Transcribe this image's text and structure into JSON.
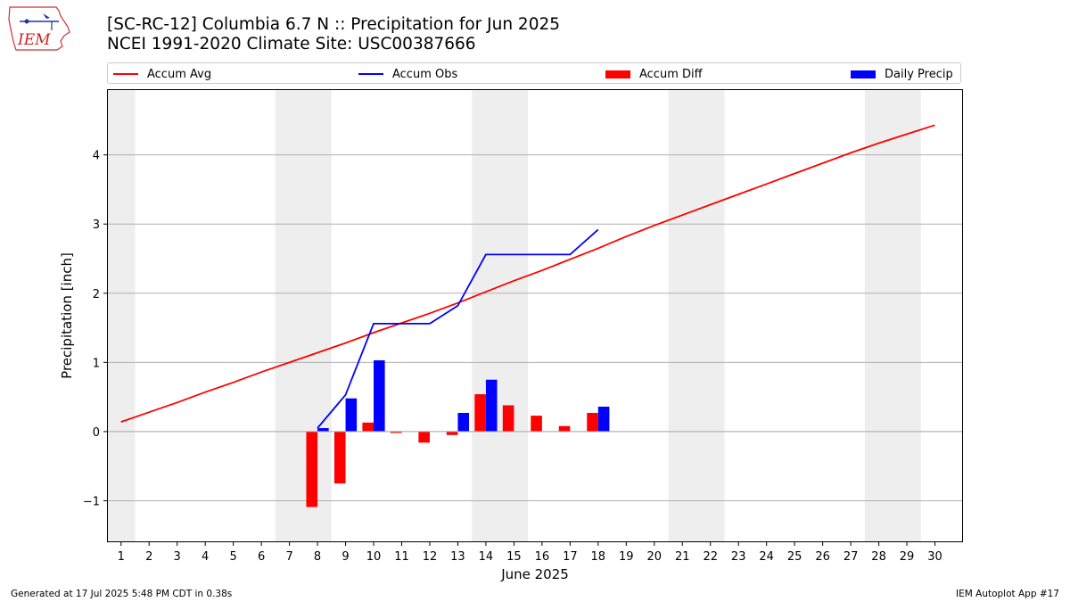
{
  "header": {
    "title_line1": "[SC-RC-12] Columbia 6.7 N :: Precipitation for Jun 2025",
    "title_line2": "NCEI 1991-2020 Climate Site: USC00387666",
    "logo_text": "IEM"
  },
  "legend": {
    "items": [
      {
        "label": "Accum Avg",
        "kind": "line",
        "color": "#ff0000"
      },
      {
        "label": "Accum Obs",
        "kind": "line",
        "color": "#0000ff"
      },
      {
        "label": "Accum Diff",
        "kind": "bar",
        "color": "#ff0000"
      },
      {
        "label": "Daily Precip",
        "kind": "bar",
        "color": "#0000ff"
      }
    ]
  },
  "footer": {
    "generated": "Generated at 17 Jul 2025 5:48 PM CDT in 0.38s",
    "app": "IEM Autoplot App #17"
  },
  "chart_data": {
    "type": "bar",
    "xlabel": "June 2025",
    "ylabel": "Precipitation [inch]",
    "xlim": [
      0.5,
      31
    ],
    "ylim": [
      -1.6,
      4.95
    ],
    "yticks": [
      -1,
      0,
      1,
      2,
      3,
      4
    ],
    "ytick_labels": [
      "−1",
      "0",
      "1",
      "2",
      "3",
      "4"
    ],
    "days": [
      1,
      2,
      3,
      4,
      5,
      6,
      7,
      8,
      9,
      10,
      11,
      12,
      13,
      14,
      15,
      16,
      17,
      18,
      19,
      20,
      21,
      22,
      23,
      24,
      25,
      26,
      27,
      28,
      29,
      30
    ],
    "weekend_bands": [
      [
        0.5,
        1.5
      ],
      [
        6.5,
        8.5
      ],
      [
        13.5,
        15.5
      ],
      [
        20.5,
        22.5
      ],
      [
        27.5,
        29.5
      ]
    ],
    "grid": "horizontal",
    "colors": {
      "accum_avg": "#ff0000",
      "accum_obs": "#0000ff",
      "accum_diff": "#ff0000",
      "daily_precip": "#0000ff",
      "weekend": "#eeeeee",
      "grid": "#b0b0b0"
    },
    "series": [
      {
        "name": "Accum Avg",
        "type": "line",
        "x": [
          1,
          2,
          3,
          4,
          5,
          6,
          7,
          8,
          9,
          10,
          11,
          12,
          13,
          14,
          15,
          16,
          17,
          18,
          19,
          20,
          21,
          22,
          23,
          24,
          25,
          26,
          27,
          28,
          29,
          30
        ],
        "values": [
          0.14,
          0.28,
          0.42,
          0.57,
          0.71,
          0.86,
          1.0,
          1.14,
          1.28,
          1.43,
          1.57,
          1.71,
          1.86,
          2.02,
          2.18,
          2.33,
          2.49,
          2.65,
          2.82,
          2.98,
          3.13,
          3.28,
          3.43,
          3.58,
          3.73,
          3.88,
          4.03,
          4.17,
          4.3,
          4.43
        ]
      },
      {
        "name": "Accum Obs",
        "type": "line",
        "x": [
          8,
          9,
          10,
          11,
          12,
          13,
          14,
          15,
          16,
          17,
          18
        ],
        "values": [
          0.05,
          0.53,
          1.56,
          1.56,
          1.56,
          1.82,
          2.56,
          2.56,
          2.56,
          2.56,
          2.92
        ]
      },
      {
        "name": "Accum Diff",
        "type": "bar",
        "x": [
          8,
          9,
          10,
          11,
          12,
          13,
          14,
          15,
          16,
          17,
          18
        ],
        "values": [
          -1.09,
          -0.75,
          0.13,
          -0.02,
          -0.16,
          -0.05,
          0.54,
          0.38,
          0.23,
          0.08,
          0.27
        ]
      },
      {
        "name": "Daily Precip",
        "type": "bar",
        "x": [
          8,
          9,
          10,
          13,
          14,
          18
        ],
        "values": [
          0.05,
          0.48,
          1.03,
          0.27,
          0.75,
          0.36
        ]
      }
    ]
  }
}
